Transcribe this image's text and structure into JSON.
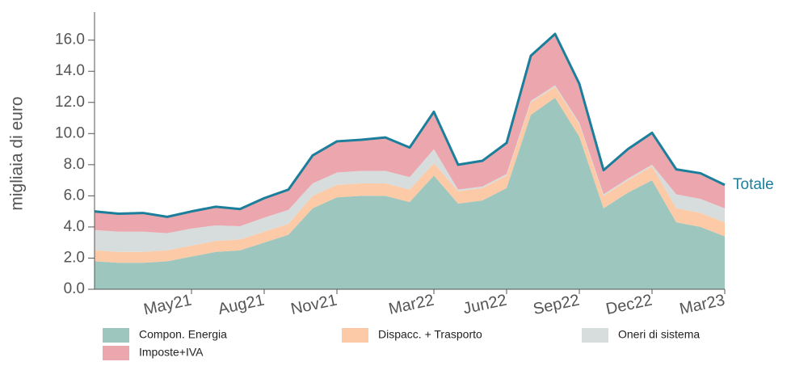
{
  "chart_data": {
    "type": "stacked_area",
    "y_label": "migliaia di euro",
    "total_label": "Totale",
    "total_color": "#1b7f9c",
    "categories": [
      null,
      null,
      null,
      null,
      "May21",
      null,
      null,
      "Aug21",
      null,
      null,
      "Nov21",
      null,
      null,
      null,
      "Mar22",
      null,
      null,
      "Jun22",
      null,
      null,
      "Sep22",
      null,
      null,
      "Dec22",
      null,
      null,
      "Mar23"
    ],
    "series": [
      {
        "name": "Compon. Energia",
        "color": "#9cc6be",
        "values": [
          1.8,
          1.7,
          1.7,
          1.8,
          2.1,
          2.4,
          2.5,
          3.0,
          3.5,
          5.2,
          5.9,
          6.0,
          6.0,
          5.6,
          7.3,
          5.5,
          5.7,
          6.5,
          11.2,
          12.3,
          9.8,
          5.2,
          6.2,
          7.0,
          4.3,
          4.0,
          3.4
        ]
      },
      {
        "name": "Dispacc. + Trasporto",
        "color": "#fccaa6",
        "values": [
          0.7,
          0.7,
          0.7,
          0.7,
          0.7,
          0.7,
          0.7,
          0.7,
          0.7,
          0.8,
          0.8,
          0.8,
          0.8,
          0.8,
          0.8,
          0.8,
          0.8,
          0.8,
          0.8,
          0.7,
          0.8,
          0.8,
          0.8,
          0.9,
          0.9,
          0.9,
          0.9
        ]
      },
      {
        "name": "Oneri di sistema",
        "color": "#d6dddc",
        "values": [
          1.3,
          1.3,
          1.3,
          1.1,
          1.1,
          1.0,
          0.85,
          0.9,
          0.9,
          0.8,
          0.8,
          0.8,
          0.8,
          0.8,
          0.9,
          0.1,
          0.1,
          0.1,
          0.1,
          0.1,
          0.1,
          0.1,
          0.1,
          0.1,
          0.9,
          0.9,
          0.9
        ]
      },
      {
        "name": "Imposte+IVA",
        "color": "#eca6ae",
        "values": [
          1.2,
          1.15,
          1.2,
          1.05,
          1.1,
          1.2,
          1.1,
          1.25,
          1.3,
          1.8,
          2.0,
          2.0,
          2.15,
          1.9,
          2.4,
          1.6,
          1.65,
          2.0,
          2.9,
          3.3,
          2.5,
          1.55,
          1.9,
          2.05,
          1.6,
          1.65,
          1.5
        ]
      }
    ],
    "ylim": [
      0,
      17.8
    ],
    "yticks": [
      {
        "value": 0,
        "label": "0.0"
      },
      {
        "value": 2,
        "label": "2.0"
      },
      {
        "value": 4,
        "label": "4.0"
      },
      {
        "value": 6,
        "label": "6.0"
      },
      {
        "value": 8,
        "label": "8.0"
      },
      {
        "value": 10,
        "label": "10.0"
      },
      {
        "value": 12,
        "label": "12.0"
      },
      {
        "value": 14,
        "label": "14.0"
      },
      {
        "value": 16,
        "label": "16.0"
      }
    ]
  }
}
